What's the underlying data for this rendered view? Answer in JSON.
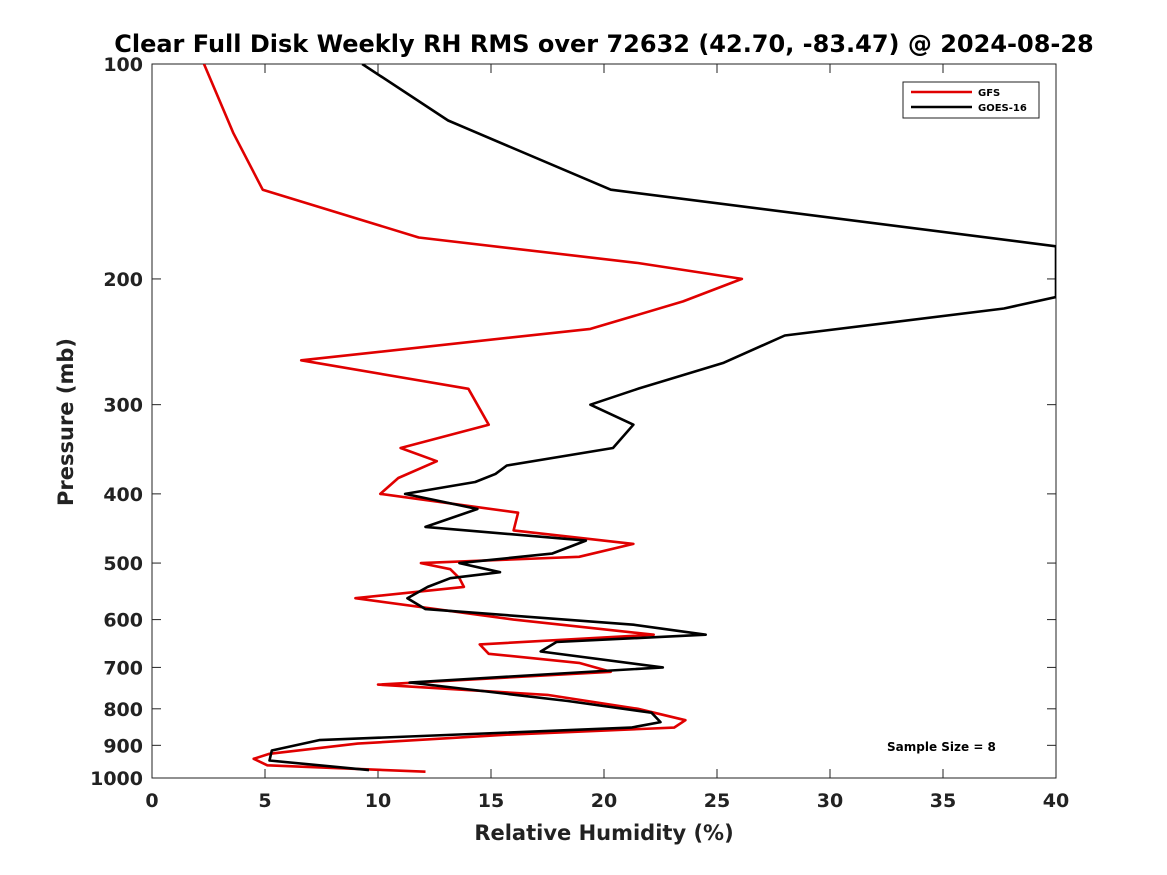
{
  "chart_data": {
    "type": "line",
    "title": "Clear Full Disk Weekly RH RMS over 72632 (42.70, -83.47) @ 2024-08-28",
    "xlabel": "Relative Humidity (%)",
    "ylabel": "Pressure (mb)",
    "xlim": [
      0,
      40
    ],
    "ylim": [
      100,
      1000
    ],
    "y_scale": "log",
    "y_reversed": true,
    "x_ticks": [
      "0",
      "5",
      "10",
      "15",
      "20",
      "25",
      "30",
      "35",
      "40"
    ],
    "y_ticks": [
      "100",
      "200",
      "300",
      "400",
      "500",
      "600",
      "700",
      "800",
      "900",
      "1000"
    ],
    "grid": false,
    "legend_position": "top-right",
    "annotation": "Sample Size = 8",
    "series": [
      {
        "name": "GFS",
        "color": "#e00000",
        "points": [
          [
            2.3,
            100
          ],
          [
            3.6,
            125
          ],
          [
            4.9,
            150
          ],
          [
            11.8,
            175
          ],
          [
            21.5,
            190
          ],
          [
            26.1,
            200
          ],
          [
            23.5,
            215
          ],
          [
            19.4,
            235
          ],
          [
            6.6,
            260
          ],
          [
            14.0,
            285
          ],
          [
            14.9,
            320
          ],
          [
            11.0,
            345
          ],
          [
            12.6,
            360
          ],
          [
            10.9,
            380
          ],
          [
            10.1,
            400
          ],
          [
            16.2,
            425
          ],
          [
            16.0,
            450
          ],
          [
            21.3,
            470
          ],
          [
            18.9,
            490
          ],
          [
            11.9,
            500
          ],
          [
            13.2,
            510
          ],
          [
            13.6,
            525
          ],
          [
            13.8,
            540
          ],
          [
            9.0,
            560
          ],
          [
            16.0,
            600
          ],
          [
            22.2,
            630
          ],
          [
            14.5,
            650
          ],
          [
            14.9,
            670
          ],
          [
            18.9,
            690
          ],
          [
            20.3,
            710
          ],
          [
            10.0,
            740
          ],
          [
            17.5,
            765
          ],
          [
            21.5,
            800
          ],
          [
            23.6,
            830
          ],
          [
            23.1,
            850
          ],
          [
            15.6,
            870
          ],
          [
            9.1,
            895
          ],
          [
            5.2,
            925
          ],
          [
            4.5,
            940
          ],
          [
            5.1,
            960
          ],
          [
            12.1,
            980
          ]
        ]
      },
      {
        "name": "GOES-16",
        "color": "#000000",
        "points": [
          [
            9.3,
            100
          ],
          [
            13.1,
            120
          ],
          [
            20.3,
            150
          ],
          [
            40.0,
            180
          ],
          [
            40.0,
            212
          ],
          [
            37.7,
            220
          ],
          [
            28.0,
            240
          ],
          [
            25.3,
            262
          ],
          [
            21.5,
            285
          ],
          [
            19.4,
            300
          ],
          [
            21.3,
            320
          ],
          [
            20.4,
            345
          ],
          [
            15.7,
            365
          ],
          [
            15.2,
            375
          ],
          [
            14.3,
            385
          ],
          [
            11.2,
            400
          ],
          [
            14.4,
            420
          ],
          [
            12.1,
            445
          ],
          [
            19.2,
            465
          ],
          [
            17.7,
            485
          ],
          [
            13.6,
            500
          ],
          [
            15.4,
            515
          ],
          [
            13.2,
            525
          ],
          [
            12.2,
            540
          ],
          [
            11.3,
            560
          ],
          [
            12.1,
            580
          ],
          [
            21.3,
            610
          ],
          [
            24.5,
            630
          ],
          [
            17.9,
            645
          ],
          [
            17.2,
            665
          ],
          [
            22.6,
            700
          ],
          [
            11.4,
            735
          ],
          [
            18.4,
            780
          ],
          [
            22.1,
            810
          ],
          [
            22.5,
            835
          ],
          [
            21.2,
            850
          ],
          [
            7.4,
            885
          ],
          [
            5.3,
            915
          ],
          [
            5.2,
            945
          ],
          [
            9.6,
            975
          ]
        ]
      }
    ]
  }
}
